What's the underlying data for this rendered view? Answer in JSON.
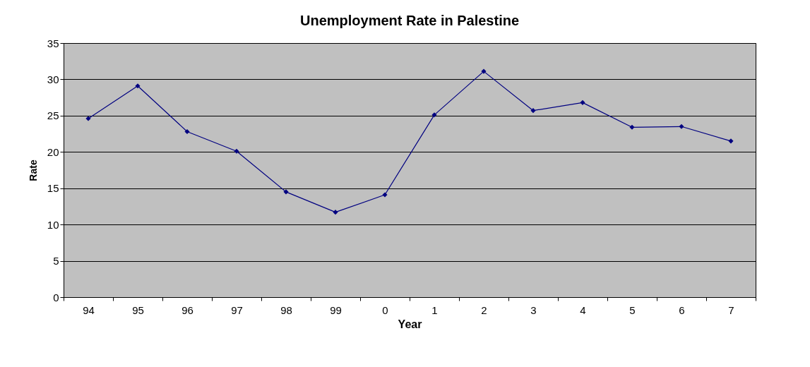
{
  "chart_data": {
    "type": "line",
    "title": "Unemployment Rate in Palestine",
    "xlabel": "Year",
    "ylabel": "Rate",
    "categories": [
      "94",
      "95",
      "96",
      "97",
      "98",
      "99",
      "0",
      "1",
      "2",
      "3",
      "4",
      "5",
      "6",
      "7"
    ],
    "series": [
      {
        "color": "#000080",
        "values": [
          24.6,
          29.1,
          22.8,
          20.1,
          14.5,
          11.7,
          14.1,
          25.1,
          31.1,
          25.7,
          26.8,
          23.4,
          23.5,
          21.5
        ]
      }
    ],
    "ylim": [
      0,
      35
    ],
    "yticks": [
      0,
      5,
      10,
      15,
      20,
      25,
      30,
      35
    ],
    "grid": "y",
    "marker": "diamond",
    "line_style": "solid"
  }
}
